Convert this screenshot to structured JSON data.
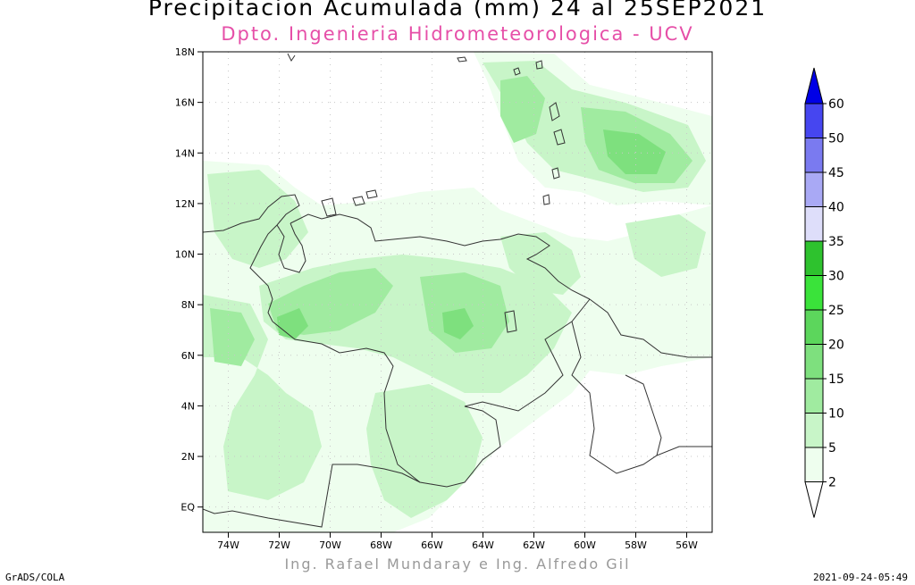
{
  "title": "Precipitacion Acumulada (mm) 24 al 25SEP2021",
  "subtitle": "Dpto. Ingenieria Hidrometeorologica - UCV",
  "credit": "Ing. Rafael Mundaray e Ing. Alfredo Gil",
  "footer_left": "GrADS/COLA",
  "footer_right": "2021-09-24-05:49",
  "map": {
    "lon_range": [
      -75,
      -55
    ],
    "lat_range": [
      -1,
      18
    ],
    "lon_ticks": [
      "74W",
      "72W",
      "70W",
      "68W",
      "66W",
      "64W",
      "62W",
      "60W",
      "58W",
      "56W"
    ],
    "lat_ticks": [
      "18N",
      "16N",
      "14N",
      "12N",
      "10N",
      "8N",
      "6N",
      "4N",
      "2N",
      "EQ"
    ],
    "grid": true
  },
  "colorbar": {
    "levels": [
      "2",
      "5",
      "10",
      "15",
      "20",
      "25",
      "30",
      "35",
      "40",
      "45",
      "50",
      "60"
    ],
    "colors": [
      "#eefeee",
      "#c8f5c8",
      "#a0eba0",
      "#7ee07e",
      "#5cd65c",
      "#3ae33a",
      "#2ec22e",
      "#dedefa",
      "#a9a9f5",
      "#7a7af0",
      "#4646f0",
      "#0000e6"
    ],
    "under_color": "#ffffff"
  }
}
